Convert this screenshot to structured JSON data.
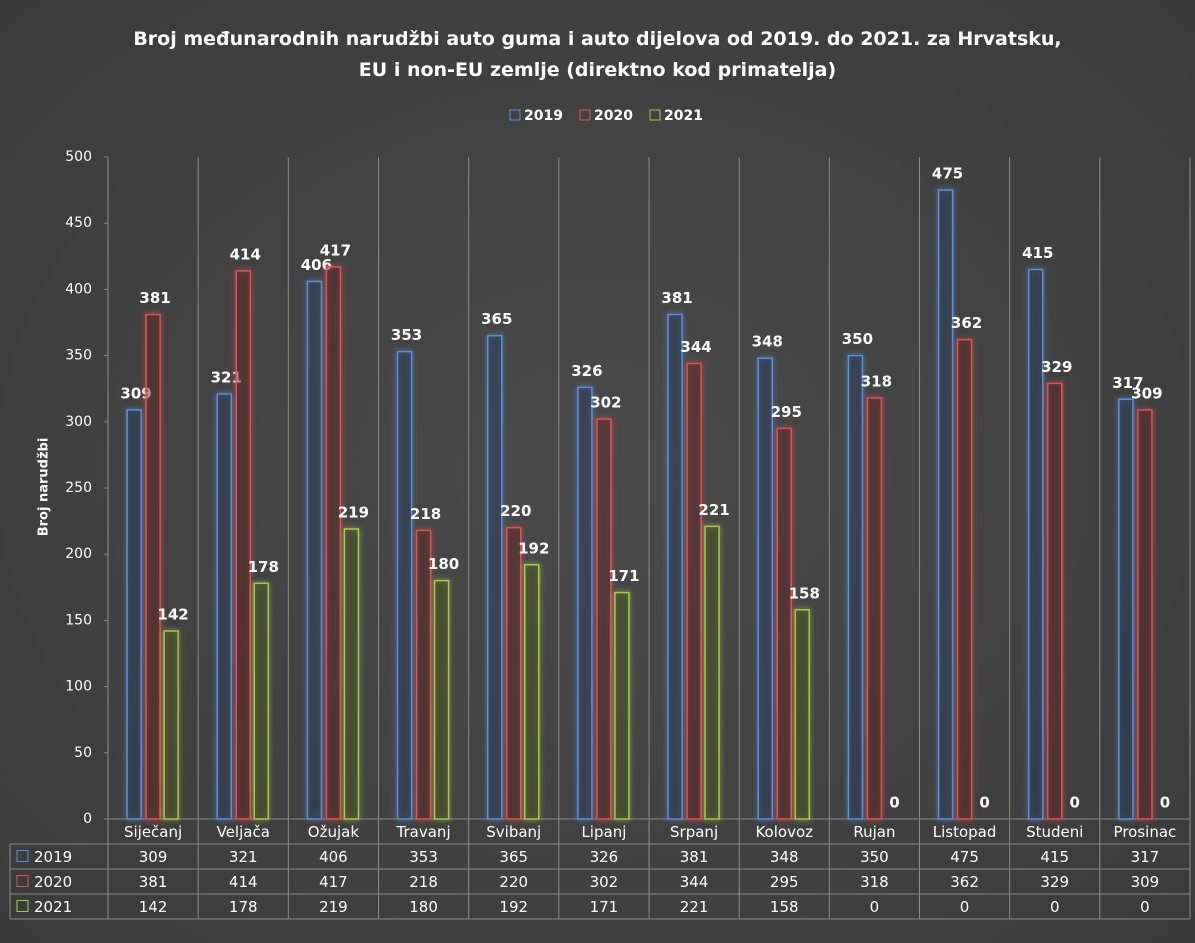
{
  "chart_data": {
    "type": "bar",
    "title": "Broj međunarodnih narudžbi auto guma i auto dijelova od 2019. do 2021. za Hrvatsku, EU i non-EU zemlje (direktno kod primatelja)",
    "y_label": "Broj narudžbi",
    "categories": [
      "Siječanj",
      "Veljača",
      "Ožujak",
      "Travanj",
      "Svibanj",
      "Lipanj",
      "Srpanj",
      "Kolovoz",
      "Rujan",
      "Listopad",
      "Studeni",
      "Prosinac"
    ],
    "series": [
      {
        "name": "2019",
        "color": "#5b8fd8",
        "values": [
          309,
          321,
          406,
          353,
          365,
          326,
          381,
          348,
          350,
          475,
          415,
          317
        ]
      },
      {
        "name": "2020",
        "color": "#e05252",
        "values": [
          381,
          414,
          417,
          218,
          220,
          302,
          344,
          295,
          318,
          362,
          329,
          309
        ]
      },
      {
        "name": "2021",
        "color": "#a9c94b",
        "values": [
          142,
          178,
          219,
          180,
          192,
          171,
          221,
          158,
          0,
          0,
          0,
          0
        ]
      }
    ],
    "ylim": [
      0,
      500
    ],
    "yticks": [
      0,
      50,
      100,
      150,
      200,
      250,
      300,
      350,
      400,
      450,
      500
    ],
    "legend": "top",
    "data_table": true
  }
}
